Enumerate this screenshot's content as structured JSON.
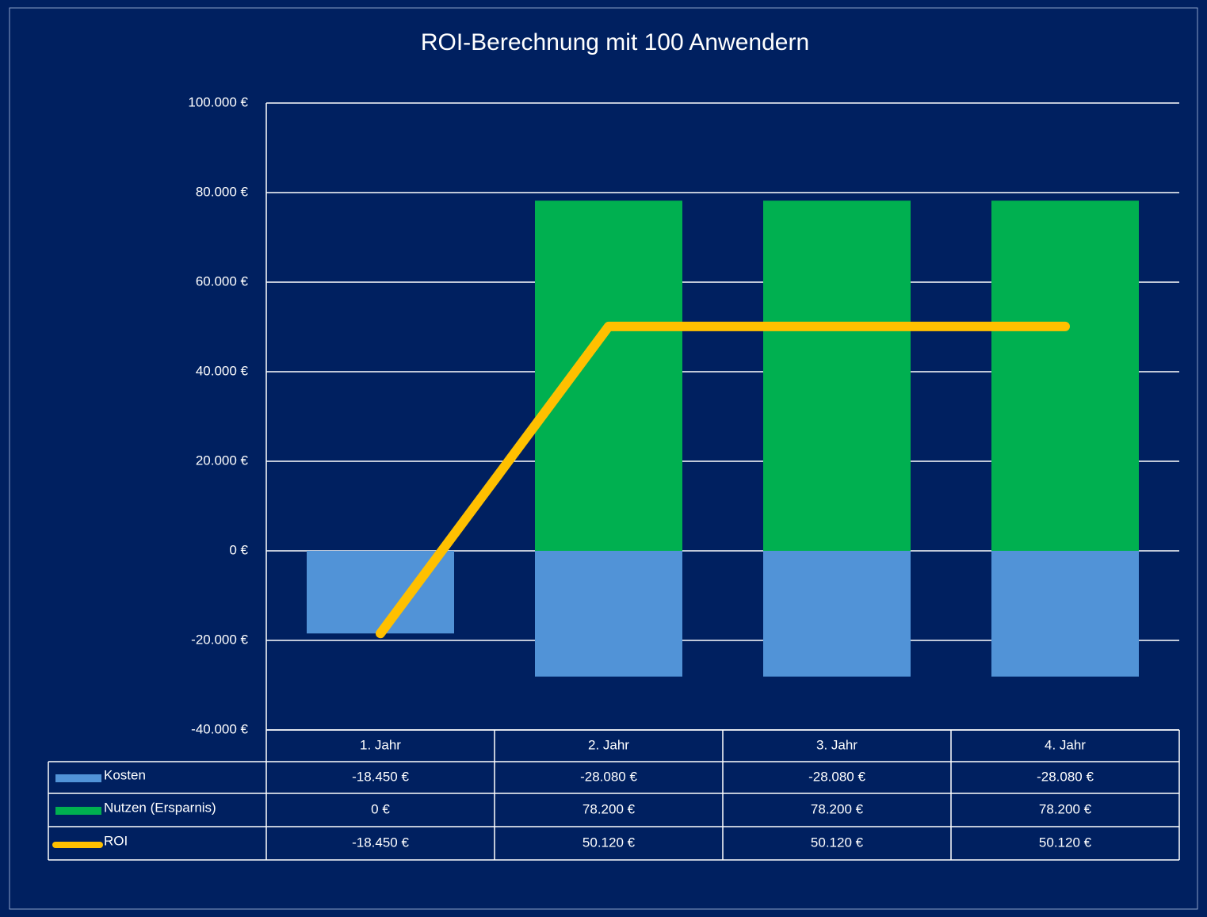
{
  "chart_data": {
    "type": "bar",
    "title": "ROI-Berechnung mit 100 Anwendern",
    "categories": [
      "1. Jahr",
      "2. Jahr",
      "3. Jahr",
      "4. Jahr"
    ],
    "series": [
      {
        "name": "Kosten",
        "type": "bar",
        "color": "#5193d7",
        "values": [
          -18450,
          -28080,
          -28080,
          -28080
        ],
        "value_labels": [
          "-18.450 €",
          "-28.080 €",
          "-28.080 €",
          "-28.080 €"
        ]
      },
      {
        "name": "Nutzen (Ersparnis)",
        "type": "bar",
        "color": "#00b050",
        "values": [
          0,
          78200,
          78200,
          78200
        ],
        "value_labels": [
          "0 €",
          "78.200 €",
          "78.200 €",
          "78.200 €"
        ]
      },
      {
        "name": "ROI",
        "type": "line",
        "color": "#ffc000",
        "values": [
          -18450,
          50120,
          50120,
          50120
        ],
        "value_labels": [
          "-18.450 €",
          "50.120 €",
          "50.120 €",
          "50.120 €"
        ]
      }
    ],
    "ylim": [
      -40000,
      100000
    ],
    "yticks": [
      {
        "value": -40000,
        "label": "-40.000 €"
      },
      {
        "value": -20000,
        "label": "-20.000 €"
      },
      {
        "value": 0,
        "label": "0 €"
      },
      {
        "value": 20000,
        "label": "20.000 €"
      },
      {
        "value": 40000,
        "label": "40.000 €"
      },
      {
        "value": 60000,
        "label": "60.000 €"
      },
      {
        "value": 80000,
        "label": "80.000 €"
      },
      {
        "value": 100000,
        "label": "100.000 €"
      }
    ],
    "grid": true
  }
}
